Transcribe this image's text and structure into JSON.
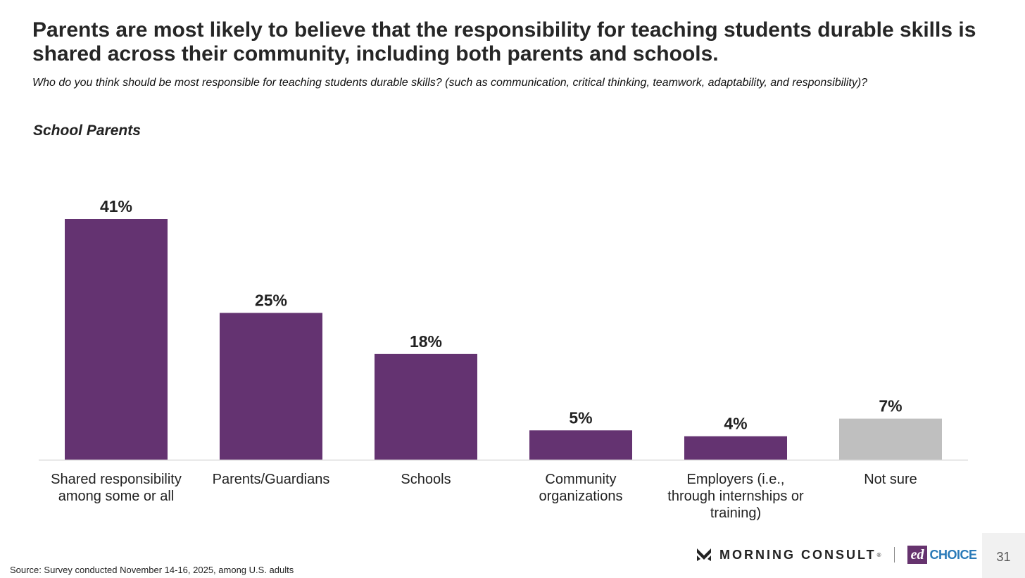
{
  "slide": {
    "title": "Parents are most likely to believe that the responsibility for teaching students durable skills is shared across their community, including both parents and schools.",
    "subtitle": "Who do you think should be most responsible for teaching students durable skills? (such as communication, critical thinking, teamwork, adaptability, and responsibility)?",
    "group_label": "School Parents",
    "source": "Source: Survey conducted November 14-16, 2025, among U.S. adults",
    "page_number": "31",
    "logos": {
      "morning_consult": "MORNING CONSULT",
      "morning_consult_reg": "®",
      "edchoice_mark": "ed",
      "edchoice_text": "CHOICE"
    }
  },
  "colors": {
    "bar": "#643371",
    "bar_muted": "#bfbfbf",
    "axis": "#d9d9d9",
    "label": "#222222"
  },
  "chart_data": {
    "type": "bar",
    "categories": [
      [
        "Shared responsibility",
        "among some or all"
      ],
      [
        "Parents/Guardians"
      ],
      [
        "Schools"
      ],
      [
        "Community",
        "organizations"
      ],
      [
        "Employers (i.e.,",
        "through internships or",
        "training)"
      ],
      [
        "Not sure"
      ]
    ],
    "values": [
      41,
      25,
      18,
      5,
      4,
      7
    ],
    "data_labels": [
      "41%",
      "25%",
      "18%",
      "5%",
      "4%",
      "7%"
    ],
    "muted": [
      false,
      false,
      false,
      false,
      false,
      true
    ],
    "ylim": [
      0,
      41
    ],
    "grid": false,
    "legend": "none"
  }
}
